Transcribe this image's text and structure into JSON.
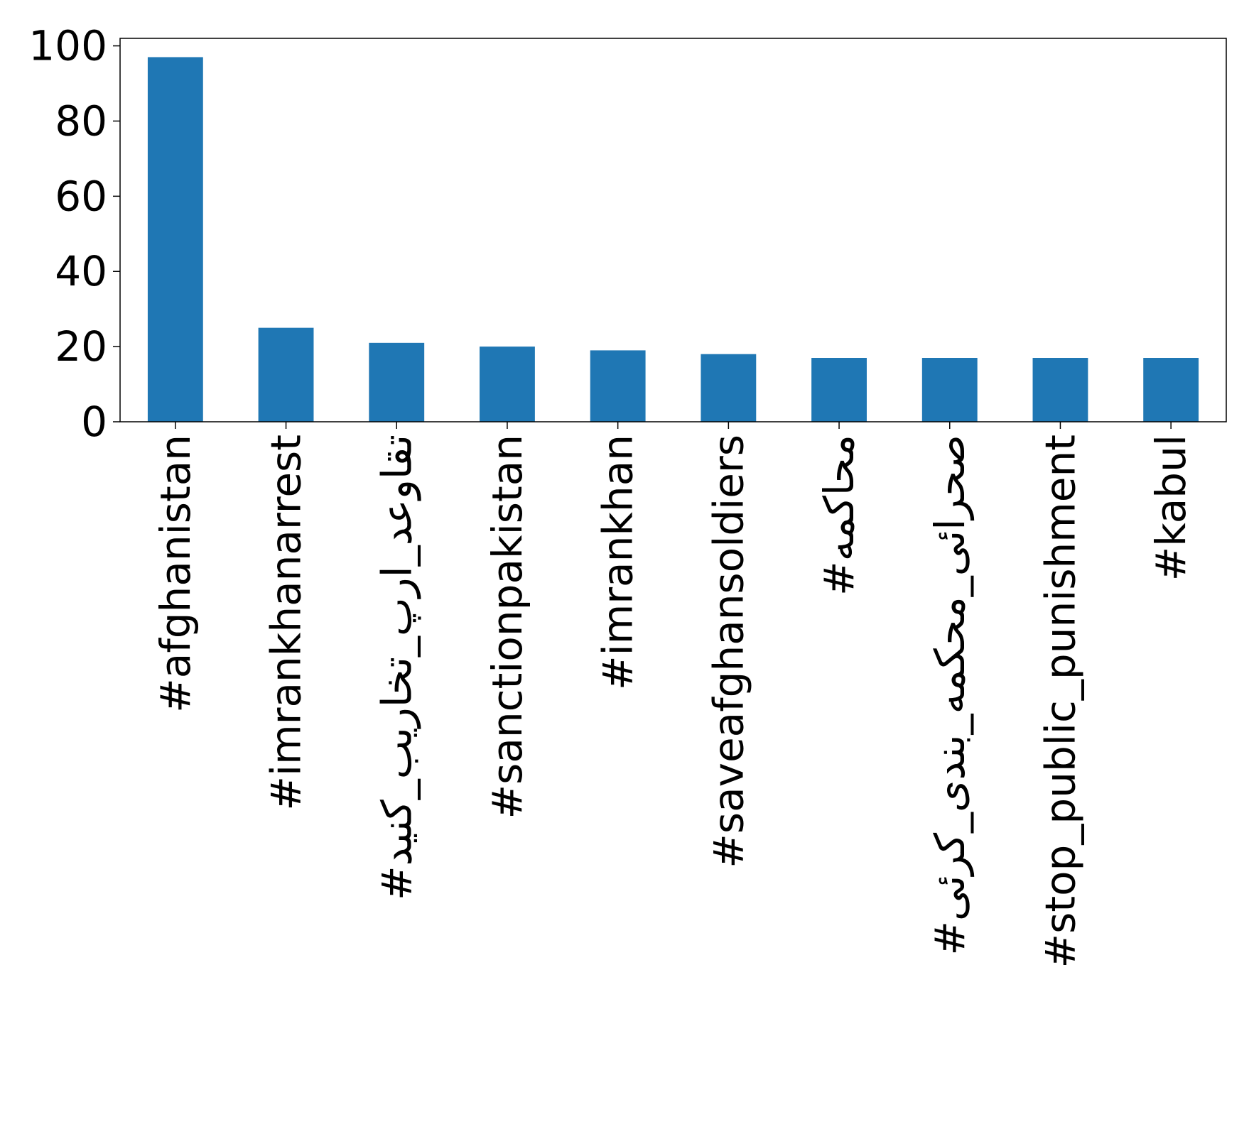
{
  "chart_data": {
    "type": "bar",
    "categories": [
      "#afghanistan",
      "#imrankhanarrest",
      "#تقاوعد_ارپ_تخاریب_کنید",
      "#sanctionpakistan",
      "#imrankhan",
      "#saveafghansoldiers",
      "#محاکمه",
      "#صحرائی_محکمه_بندی_کرئی",
      "#stop_public_punishment",
      "#kabul"
    ],
    "values": [
      97,
      25,
      21,
      20,
      19,
      18,
      17,
      17,
      17,
      17
    ],
    "ylim": [
      0,
      102
    ],
    "yticks": [
      0,
      20,
      40,
      60,
      80,
      100
    ],
    "title": "",
    "xlabel": "",
    "ylabel": "",
    "grid": false,
    "colors": {
      "bar": "#1f77b4",
      "axis": "#000000",
      "text": "#000000"
    }
  }
}
